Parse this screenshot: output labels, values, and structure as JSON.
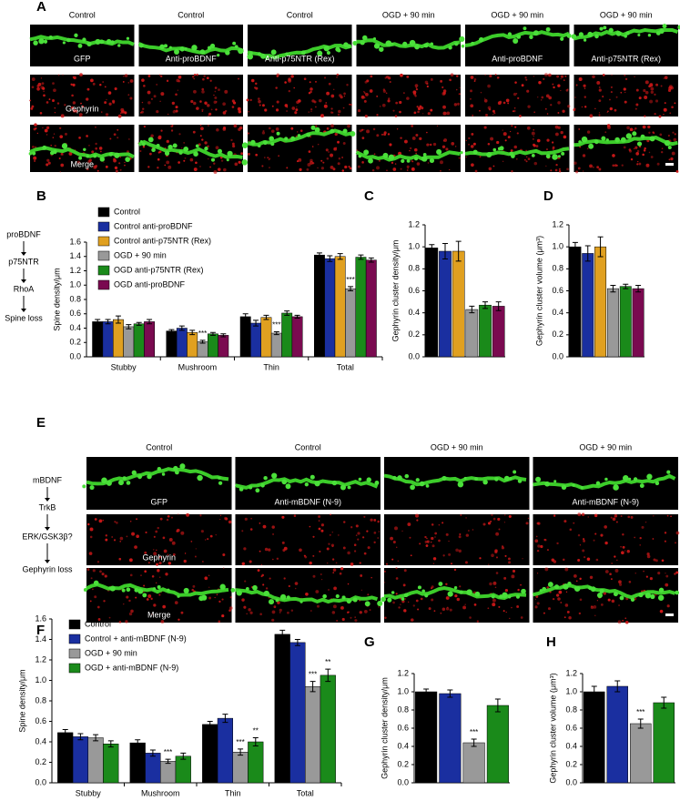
{
  "panel_labels": [
    "A",
    "B",
    "C",
    "D",
    "E",
    "F",
    "G",
    "H"
  ],
  "image_panels": [
    {
      "columns": [
        "Control",
        "Control",
        "Control",
        "OGD + 90 min",
        "OGD + 90 min",
        "OGD + 90 min"
      ],
      "captions": [
        [
          "GFP",
          "Anti-proBDNF",
          "Anti-p75NTR (Rex)",
          null,
          "Anti-proBDNF",
          "Anti-p75NTR (Rex)"
        ],
        [
          "Gephyrin",
          null,
          null,
          null,
          null,
          null
        ],
        [
          "Merge",
          null,
          null,
          null,
          null,
          null
        ]
      ]
    },
    {
      "columns": [
        "Control",
        "Control",
        "OGD + 90 min",
        "OGD + 90 min"
      ],
      "captions": [
        [
          "GFP",
          "Anti-mBDNF (N-9)",
          null,
          "Anti-mBDNF (N-9)"
        ],
        [
          "Gephyrin",
          null,
          null,
          null
        ],
        [
          "Merge",
          null,
          null,
          null
        ]
      ]
    }
  ],
  "pathways": [
    [
      "proBDNF",
      "p75NTR",
      "RhoA",
      "Spine loss"
    ],
    [
      "mBDNF",
      "TrkB",
      "ERK/GSK3β?",
      "Gephyrin loss"
    ]
  ],
  "chart_data": [
    {
      "type": "bar",
      "ylabel": "Spine density/μm",
      "categories": [
        "Stubby",
        "Mushroom",
        "Thin",
        "Total"
      ],
      "ylim": [
        0,
        1.6
      ],
      "yticks": [
        {
          "value": 0,
          "label": "0.0"
        },
        0.2,
        0.4,
        0.6,
        0.8,
        {
          "value": 1,
          "label": "1.0"
        },
        1.2,
        1.4,
        1.6
      ],
      "series": [
        {
          "name": "Control",
          "color": "#000000",
          "values": [
            0.49,
            0.36,
            0.56,
            1.42
          ],
          "errors": [
            0.03,
            0.02,
            0.04,
            0.03
          ],
          "significance": [
            null,
            null,
            null,
            null
          ]
        },
        {
          "name": "Control anti-proBDNF",
          "color": "#1a2fa0",
          "values": [
            0.49,
            0.4,
            0.47,
            1.37
          ],
          "errors": [
            0.03,
            0.03,
            0.04,
            0.04
          ],
          "significance": [
            null,
            null,
            null,
            null
          ]
        },
        {
          "name": "Control anti-p75NTR (Rex)",
          "color": "#e0a020",
          "values": [
            0.52,
            0.34,
            0.55,
            1.4
          ],
          "errors": [
            0.05,
            0.03,
            0.03,
            0.04
          ],
          "significance": [
            null,
            null,
            null,
            null
          ]
        },
        {
          "name": "OGD + 90 min",
          "color": "#999999",
          "values": [
            0.42,
            0.21,
            0.33,
            0.95
          ],
          "errors": [
            0.03,
            0.02,
            0.02,
            0.03
          ],
          "significance": [
            null,
            "***",
            "***",
            "***"
          ]
        },
        {
          "name": "OGD anti-p75NTR (Rex)",
          "color": "#1a8a1a",
          "values": [
            0.46,
            0.32,
            0.61,
            1.39
          ],
          "errors": [
            0.02,
            0.02,
            0.03,
            0.03
          ],
          "significance": [
            null,
            null,
            null,
            null
          ]
        },
        {
          "name": "OGD anti-proBDNF",
          "color": "#7a0a50",
          "values": [
            0.49,
            0.3,
            0.56,
            1.35
          ],
          "errors": [
            0.03,
            0.02,
            0.02,
            0.03
          ],
          "significance": [
            null,
            null,
            null,
            null
          ]
        }
      ]
    },
    {
      "type": "bar",
      "ylabel": "Gephyrin cluster density/μm",
      "categories": [
        null,
        null,
        null,
        null,
        null,
        null
      ],
      "ylim": [
        0,
        1.2
      ],
      "yticks": [
        {
          "value": 0,
          "label": "0.0"
        },
        0.2,
        0.4,
        0.6,
        0.8,
        {
          "value": 1,
          "label": "1.0"
        },
        1.2
      ],
      "values": [
        0.99,
        0.96,
        0.96,
        0.43,
        0.47,
        0.46
      ],
      "errors": [
        0.03,
        0.07,
        0.09,
        0.03,
        0.03,
        0.04
      ],
      "colors": [
        "#000000",
        "#1a2fa0",
        "#e0a020",
        "#999999",
        "#1a8a1a",
        "#7a0a50"
      ],
      "significance": [
        null,
        null,
        null,
        null,
        null,
        null
      ]
    },
    {
      "type": "bar",
      "ylabel": "Gephyrin cluster volume (μm³)",
      "categories": [
        null,
        null,
        null,
        null,
        null,
        null
      ],
      "ylim": [
        0,
        1.2
      ],
      "yticks": [
        {
          "value": 0,
          "label": "0.0"
        },
        0.2,
        0.4,
        0.6,
        0.8,
        {
          "value": 1,
          "label": "1.0"
        },
        1.2
      ],
      "values": [
        1.0,
        0.94,
        1.0,
        0.62,
        0.64,
        0.62
      ],
      "errors": [
        0.04,
        0.07,
        0.09,
        0.03,
        0.02,
        0.03
      ],
      "colors": [
        "#000000",
        "#1a2fa0",
        "#e0a020",
        "#999999",
        "#1a8a1a",
        "#7a0a50"
      ],
      "significance": [
        null,
        null,
        null,
        null,
        null,
        null
      ]
    },
    {
      "type": "bar",
      "ylabel": "Spine density/μm",
      "categories": [
        "Stubby",
        "Mushroom",
        "Thin",
        "Total"
      ],
      "ylim": [
        0,
        1.6
      ],
      "yticks": [
        {
          "value": 0,
          "label": "0.0"
        },
        0.2,
        0.4,
        0.6,
        0.8,
        {
          "value": 1,
          "label": "1.0"
        },
        1.2,
        1.4,
        1.6
      ],
      "series": [
        {
          "name": "Control",
          "color": "#000000",
          "values": [
            0.49,
            0.39,
            0.57,
            1.45
          ],
          "errors": [
            0.03,
            0.03,
            0.03,
            0.04
          ],
          "significance": [
            null,
            null,
            null,
            null
          ]
        },
        {
          "name": "Control + anti-mBDNF (N-9)",
          "color": "#1a2fa0",
          "values": [
            0.45,
            0.29,
            0.63,
            1.37
          ],
          "errors": [
            0.03,
            0.03,
            0.04,
            0.03
          ],
          "significance": [
            null,
            null,
            null,
            null
          ]
        },
        {
          "name": "OGD + 90 min",
          "color": "#999999",
          "values": [
            0.44,
            0.21,
            0.3,
            0.94
          ],
          "errors": [
            0.03,
            0.02,
            0.03,
            0.05
          ],
          "significance": [
            null,
            "***",
            "***",
            "***"
          ]
        },
        {
          "name": "OGD + anti-mBDNF (N-9)",
          "color": "#1a8a1a",
          "values": [
            0.38,
            0.26,
            0.4,
            1.05
          ],
          "errors": [
            0.03,
            0.03,
            0.04,
            0.06
          ],
          "significance": [
            null,
            null,
            "**",
            "**"
          ]
        }
      ]
    },
    {
      "type": "bar",
      "ylabel": "Gephyrin cluster density/μm",
      "categories": [
        null,
        null,
        null,
        null
      ],
      "ylim": [
        0,
        1.2
      ],
      "yticks": [
        {
          "value": 0,
          "label": "0.0"
        },
        0.2,
        0.4,
        0.6,
        0.8,
        {
          "value": 1,
          "label": "1.0"
        },
        1.2
      ],
      "values": [
        1.0,
        0.98,
        0.44,
        0.85
      ],
      "errors": [
        0.03,
        0.04,
        0.04,
        0.07
      ],
      "colors": [
        "#000000",
        "#1a2fa0",
        "#999999",
        "#1a8a1a"
      ],
      "significance": [
        null,
        null,
        "***",
        null
      ]
    },
    {
      "type": "bar",
      "ylabel": "Gephyrin cluster volume (μm³)",
      "categories": [
        null,
        null,
        null,
        null
      ],
      "ylim": [
        0,
        1.2
      ],
      "yticks": [
        {
          "value": 0,
          "label": "0.0"
        },
        0.2,
        0.4,
        0.6,
        0.8,
        {
          "value": 1,
          "label": "1.0"
        },
        1.2
      ],
      "values": [
        1.0,
        1.06,
        0.65,
        0.88
      ],
      "errors": [
        0.06,
        0.06,
        0.05,
        0.06
      ],
      "colors": [
        "#000000",
        "#1a2fa0",
        "#999999",
        "#1a8a1a"
      ],
      "significance": [
        null,
        null,
        "***",
        null
      ]
    }
  ]
}
